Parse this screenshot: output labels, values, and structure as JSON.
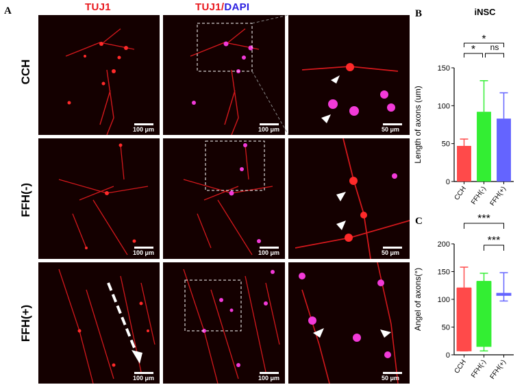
{
  "panels": {
    "a": "A",
    "b": "B",
    "c": "C"
  },
  "columns": {
    "tuj1": "TUJ1",
    "merged_red": "TUJ1/",
    "merged_blue": "DAPI"
  },
  "rows": [
    "CCH",
    "FFH(-)",
    "FFH(+)"
  ],
  "scale_labels": {
    "low_mag": "100 μm",
    "high_mag": "50 μm"
  },
  "colors": {
    "tuj1_red": "#e8161b",
    "dapi_blue": "#2b1ee0",
    "bar_cch": "#ff4a4a",
    "bar_ffh_minus": "#33ee33",
    "bar_ffh_plus": "#6464ff",
    "tile_background": "#140000"
  },
  "chart_data": [
    {
      "type": "bar",
      "title": "iNSC",
      "categories": [
        "CCH",
        "FFH(-)",
        "FFH(+)"
      ],
      "values": [
        47,
        92,
        83
      ],
      "error_upper": [
        56,
        133,
        117
      ],
      "ylabel": "Length of axons (um)",
      "xlabel": "",
      "ylim": [
        0,
        150
      ],
      "yticks": [
        0,
        50,
        100,
        150
      ],
      "grid": false,
      "significance": [
        {
          "from": "CCH",
          "to": "FFH(-)",
          "label": "*"
        },
        {
          "from": "FFH(-)",
          "to": "FFH(+)",
          "label": "ns"
        },
        {
          "from": "CCH",
          "to": "FFH(+)",
          "label": "*"
        }
      ]
    },
    {
      "type": "box",
      "title": "",
      "categories": [
        "CCH",
        "FFH(-)",
        "FFH(+)"
      ],
      "boxes": [
        {
          "min": 7,
          "q1": 7,
          "median": 120,
          "q3": 120,
          "max": 158
        },
        {
          "min": 7,
          "q1": 15,
          "median": 132,
          "q3": 132,
          "max": 147
        },
        {
          "min": 97,
          "q1": 107,
          "median": 109,
          "q3": 111,
          "max": 148
        }
      ],
      "ylabel": "Angel of axons(°)",
      "xlabel": "",
      "ylim": [
        0,
        200
      ],
      "yticks": [
        0,
        50,
        100,
        150,
        200
      ],
      "grid": false,
      "significance": [
        {
          "from": "CCH",
          "to": "FFH(+)",
          "label": "***"
        },
        {
          "from": "FFH(-)",
          "to": "FFH(+)",
          "label": "***"
        }
      ]
    }
  ]
}
